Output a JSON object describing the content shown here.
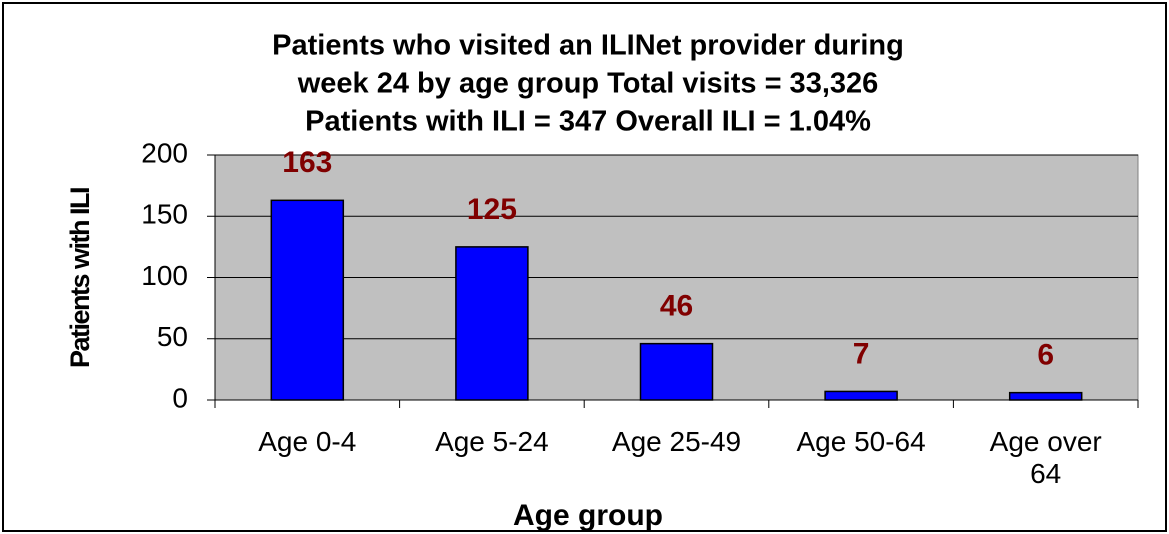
{
  "chart_data": {
    "type": "bar",
    "title": [
      "Patients who visited an ILINet provider during",
      "week 24 by age group Total visits = 33,326",
      "Patients with ILI = 347  Overall ILI = 1.04%"
    ],
    "x_label": "Age group",
    "y_label": "Patients with ILI",
    "categories": [
      "Age 0-4",
      "Age 5-24",
      "Age 25-49",
      "Age 50-64",
      "Age over 64"
    ],
    "values": [
      163,
      125,
      46,
      7,
      6
    ],
    "color": "#0000ff",
    "label_color": "#800000",
    "ylim": [
      0,
      200
    ],
    "yticks": [
      0,
      50,
      100,
      150,
      200
    ],
    "grid": true
  }
}
